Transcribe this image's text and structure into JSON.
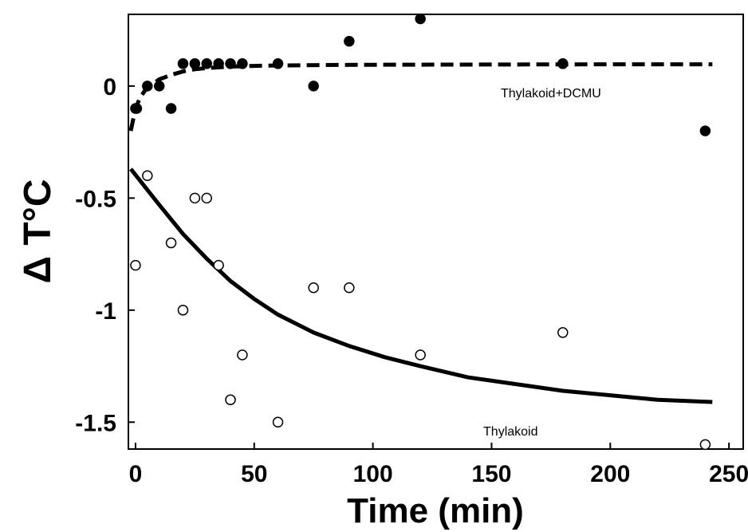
{
  "chart_data": {
    "type": "scatter",
    "title": "",
    "xlabel": "Time (min)",
    "ylabel": "Δ T°C",
    "xlim": [
      -3,
      256
    ],
    "ylim": [
      -1.62,
      0.32
    ],
    "grid": false,
    "x_ticks": [
      {
        "value": 0,
        "label": "0"
      },
      {
        "value": 50,
        "label": "50"
      },
      {
        "value": 100,
        "label": "100"
      },
      {
        "value": 150,
        "label": "150"
      },
      {
        "value": 200,
        "label": "200"
      },
      {
        "value": 250,
        "label": "250"
      }
    ],
    "y_ticks": [
      {
        "value": 0,
        "label": "0"
      },
      {
        "value": -0.5,
        "label": "-0.5"
      },
      {
        "value": -1,
        "label": "-1"
      },
      {
        "value": -1.5,
        "label": "-1.5"
      }
    ],
    "series": [
      {
        "name": "Thylakoid+DCMU",
        "marker": "filled-circle",
        "color": "#000000",
        "x": [
          0,
          0.5,
          5,
          10,
          15,
          20,
          25,
          30,
          35,
          40,
          45,
          60,
          75,
          90,
          120,
          180,
          240
        ],
        "y": [
          -0.1,
          -0.1,
          0.0,
          0.0,
          -0.1,
          0.1,
          0.1,
          0.1,
          0.1,
          0.1,
          0.1,
          0.1,
          0.0,
          0.2,
          0.3,
          0.1,
          -0.2
        ]
      },
      {
        "name": "Thylakoid",
        "marker": "open-circle",
        "color": "#000000",
        "x": [
          0,
          5,
          15,
          20,
          25,
          30,
          35,
          40,
          45,
          60,
          75,
          90,
          120,
          180,
          240
        ],
        "y": [
          -0.8,
          -0.4,
          -0.7,
          -1.0,
          -0.5,
          -0.5,
          -0.8,
          -1.4,
          -1.2,
          -1.5,
          -0.9,
          -0.9,
          -1.2,
          -1.1,
          -1.6
        ]
      }
    ],
    "fits": [
      {
        "series": "Thylakoid+DCMU",
        "style": "dashed",
        "x": [
          -2,
          0,
          2,
          4,
          6,
          8,
          10,
          15,
          20,
          25,
          30,
          40,
          50,
          60,
          80,
          100,
          150,
          200,
          243
        ],
        "y": [
          -0.2,
          -0.1,
          -0.05,
          -0.02,
          0.0,
          0.015,
          0.03,
          0.05,
          0.065,
          0.075,
          0.08,
          0.087,
          0.09,
          0.092,
          0.094,
          0.095,
          0.096,
          0.097,
          0.097
        ]
      },
      {
        "series": "Thylakoid",
        "style": "solid",
        "x": [
          -2,
          10,
          20,
          30,
          40,
          50,
          60,
          75,
          90,
          105,
          120,
          140,
          160,
          180,
          200,
          220,
          243
        ],
        "y": [
          -0.37,
          -0.53,
          -0.66,
          -0.77,
          -0.87,
          -0.95,
          -1.02,
          -1.1,
          -1.16,
          -1.21,
          -1.25,
          -1.3,
          -1.33,
          -1.36,
          -1.38,
          -1.4,
          -1.41
        ]
      }
    ],
    "annotations": [
      {
        "text": "Thylakoid+DCMU",
        "x": 175,
        "y": -0.05
      },
      {
        "text": "Thylakoid",
        "x": 158,
        "y": -1.56
      }
    ]
  }
}
